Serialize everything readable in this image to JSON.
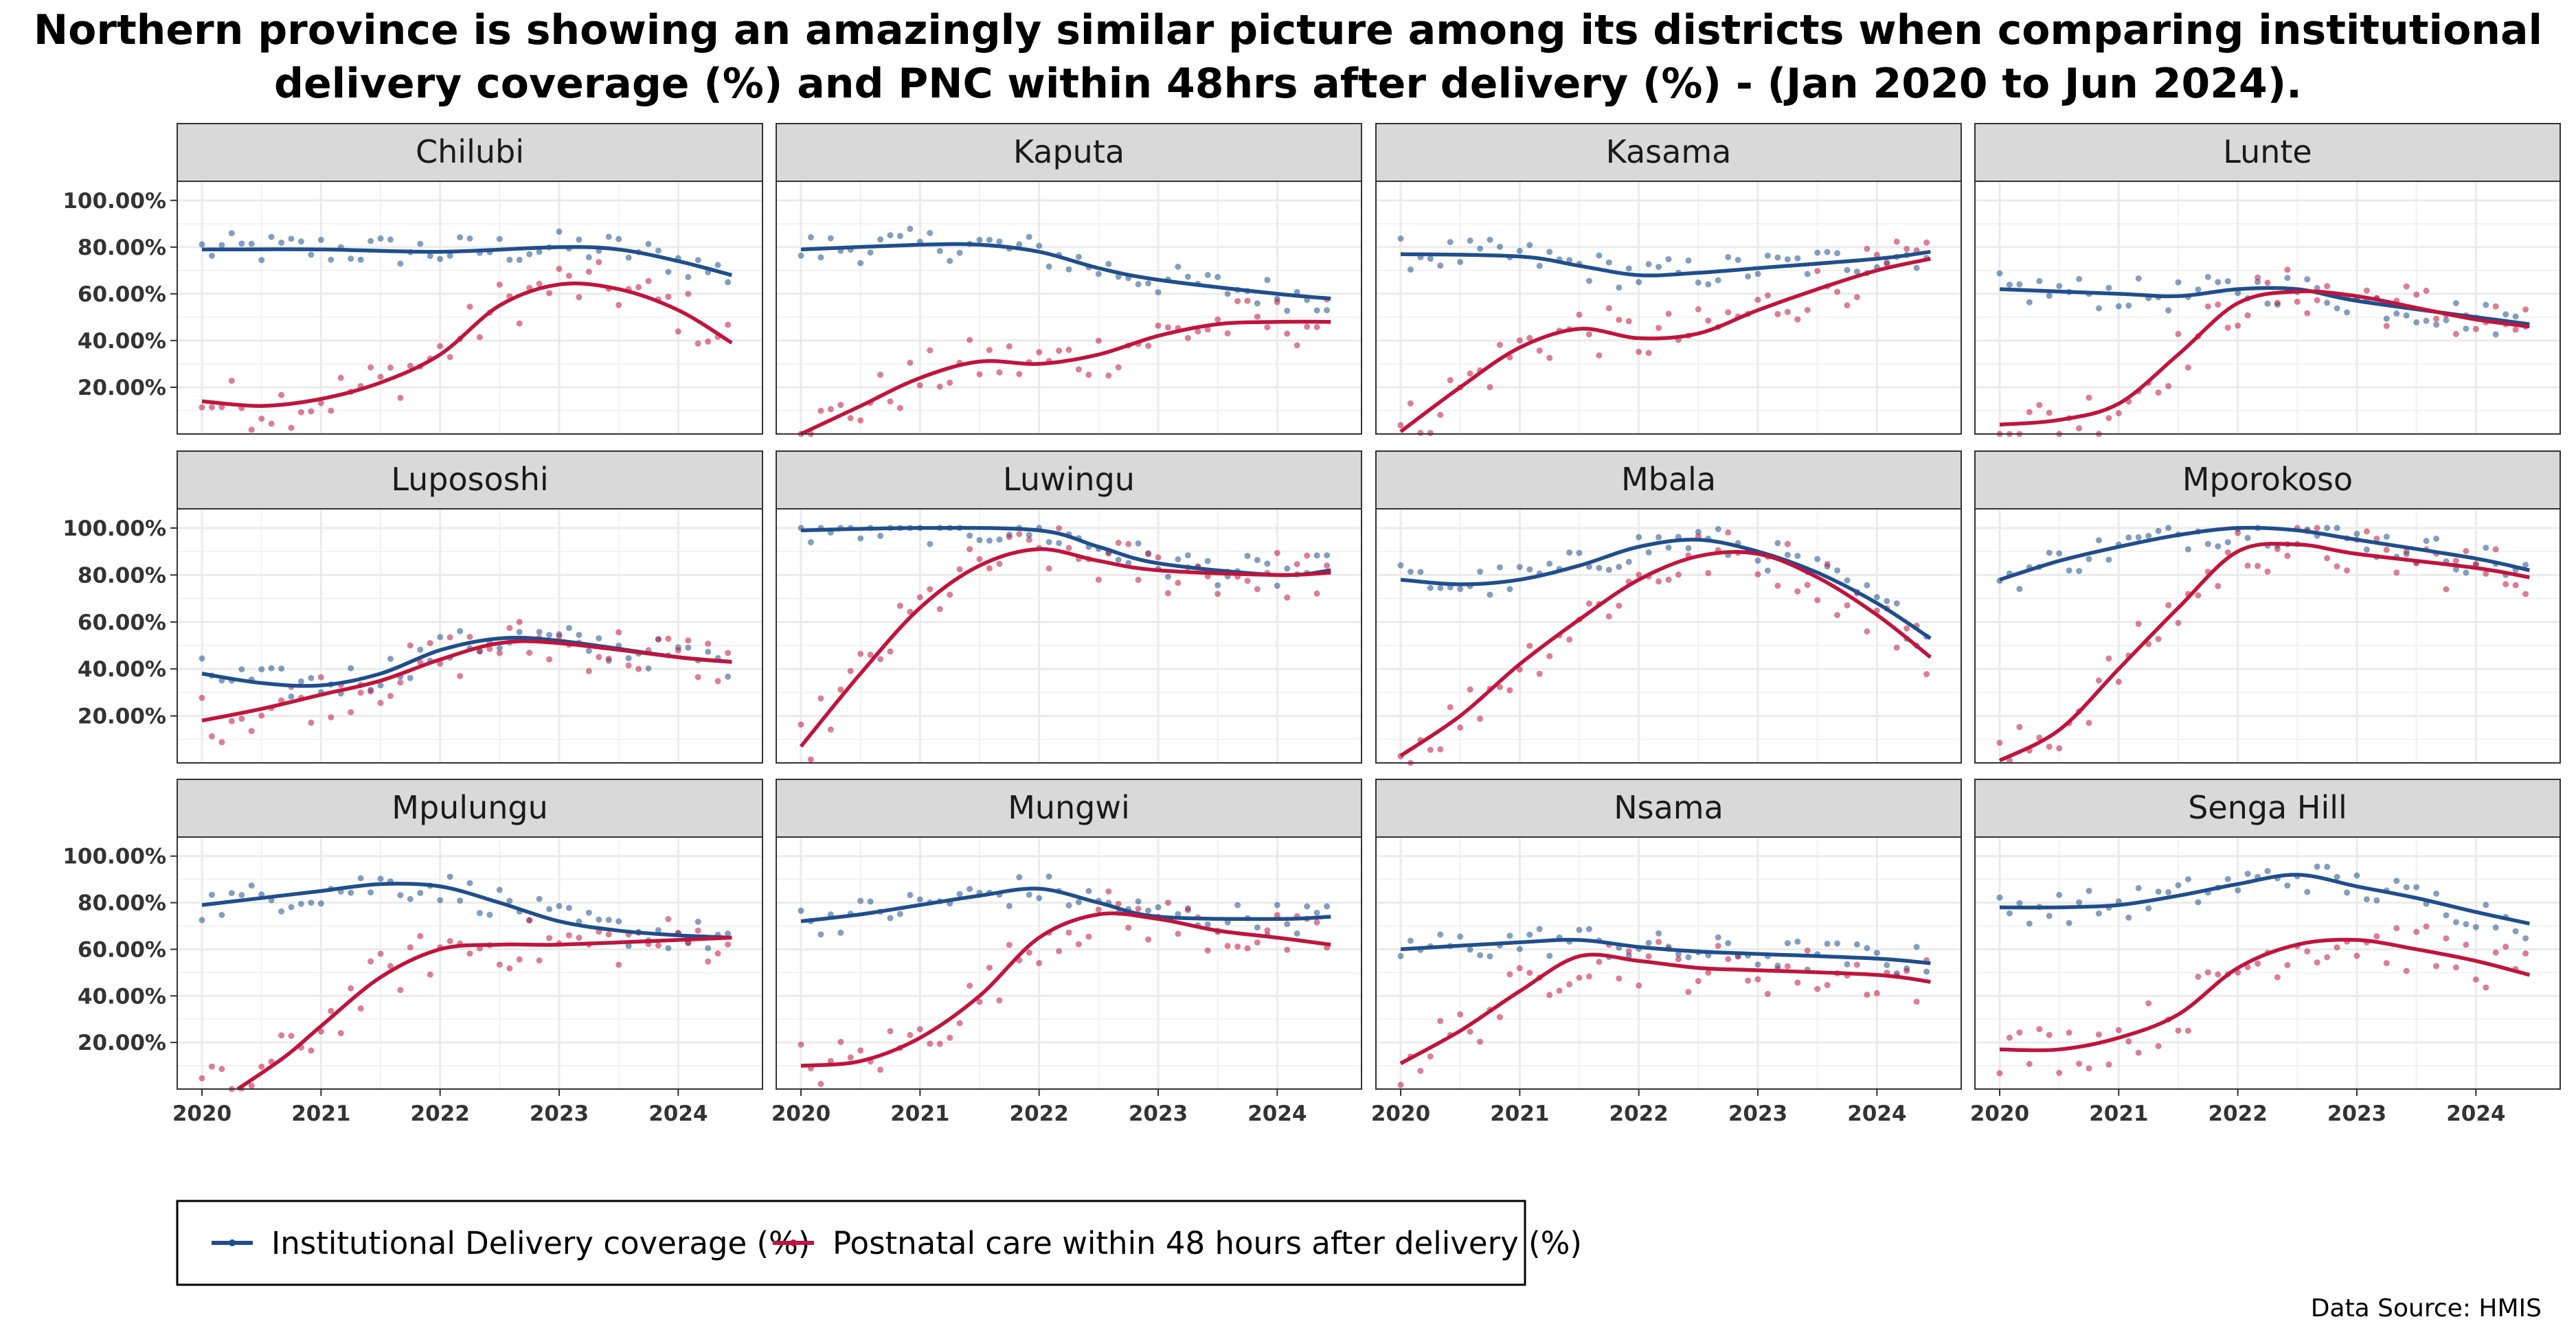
{
  "title_line1": "Northern province is showing an amazingly similar picture among its districts when comparing institutional",
  "title_line2": "delivery coverage (%) and PNC within 48hrs after delivery (%) - (Jan 2020 to Jun 2024).",
  "source": "Data Source: HMIS",
  "colors": {
    "institutional": "#1f4e8c",
    "pnc": "#c0143c",
    "strip_bg": "#d9d9d9",
    "grid": "#ebebeb"
  },
  "chart_data": {
    "type": "scatter",
    "layout": "facet-grid-3x4",
    "x_range": [
      2020,
      2024.5
    ],
    "x_ticks": [
      2020,
      2021,
      2022,
      2023,
      2024
    ],
    "y_range": [
      0,
      107
    ],
    "y_ticks": [
      20,
      40,
      60,
      80,
      100
    ],
    "y_tick_labels": [
      "20.00%",
      "40.00%",
      "60.00%",
      "80.00%",
      "100.00%"
    ],
    "grid": true,
    "legend_position": "bottom-left",
    "series_names": [
      "Institutional Delivery coverage (%)",
      "Postnatal care within 48 hours after delivery (%)"
    ],
    "facets": [
      {
        "name": "Chilubi",
        "institutional": [
          [
            2020,
            79
          ],
          [
            2021,
            79
          ],
          [
            2022,
            78
          ],
          [
            2023,
            80
          ],
          [
            2023.5,
            79
          ],
          [
            2024,
            74
          ],
          [
            2024.45,
            68
          ]
        ],
        "pnc": [
          [
            2020,
            14
          ],
          [
            2020.5,
            12
          ],
          [
            2021,
            15
          ],
          [
            2021.5,
            22
          ],
          [
            2022,
            34
          ],
          [
            2022.5,
            55
          ],
          [
            2023,
            64
          ],
          [
            2023.5,
            62
          ],
          [
            2024,
            53
          ],
          [
            2024.45,
            39
          ]
        ]
      },
      {
        "name": "Kaputa",
        "institutional": [
          [
            2020,
            79
          ],
          [
            2021,
            81
          ],
          [
            2021.5,
            81
          ],
          [
            2022,
            78
          ],
          [
            2022.5,
            71
          ],
          [
            2023,
            66
          ],
          [
            2024,
            60
          ],
          [
            2024.45,
            58
          ]
        ],
        "pnc": [
          [
            2020,
            0
          ],
          [
            2020.5,
            12
          ],
          [
            2021,
            24
          ],
          [
            2021.5,
            31
          ],
          [
            2022,
            30
          ],
          [
            2022.5,
            34
          ],
          [
            2023,
            42
          ],
          [
            2023.5,
            47
          ],
          [
            2024,
            48
          ],
          [
            2024.45,
            48
          ]
        ]
      },
      {
        "name": "Kasama",
        "institutional": [
          [
            2020,
            77
          ],
          [
            2021,
            76
          ],
          [
            2021.5,
            72
          ],
          [
            2022,
            68
          ],
          [
            2022.5,
            69
          ],
          [
            2023,
            71
          ],
          [
            2024,
            75
          ],
          [
            2024.45,
            78
          ]
        ],
        "pnc": [
          [
            2020,
            1
          ],
          [
            2020.5,
            20
          ],
          [
            2021,
            37
          ],
          [
            2021.5,
            45
          ],
          [
            2022,
            41
          ],
          [
            2022.5,
            43
          ],
          [
            2023,
            53
          ],
          [
            2023.5,
            62
          ],
          [
            2024,
            70
          ],
          [
            2024.45,
            75
          ]
        ]
      },
      {
        "name": "Lunte",
        "institutional": [
          [
            2020,
            62
          ],
          [
            2021,
            60
          ],
          [
            2021.5,
            59
          ],
          [
            2022,
            62
          ],
          [
            2022.5,
            62
          ],
          [
            2023,
            57
          ],
          [
            2024,
            50
          ],
          [
            2024.45,
            47
          ]
        ],
        "pnc": [
          [
            2020,
            4
          ],
          [
            2020.5,
            6
          ],
          [
            2021,
            13
          ],
          [
            2021.5,
            34
          ],
          [
            2022,
            56
          ],
          [
            2022.5,
            61
          ],
          [
            2023,
            59
          ],
          [
            2023.5,
            54
          ],
          [
            2024,
            49
          ],
          [
            2024.45,
            46
          ]
        ]
      },
      {
        "name": "Lupososhi",
        "institutional": [
          [
            2020,
            38
          ],
          [
            2020.5,
            34
          ],
          [
            2021,
            33
          ],
          [
            2021.5,
            38
          ],
          [
            2022,
            48
          ],
          [
            2022.5,
            53
          ],
          [
            2023,
            52
          ],
          [
            2024,
            45
          ],
          [
            2024.45,
            43
          ]
        ],
        "pnc": [
          [
            2020,
            18
          ],
          [
            2020.5,
            23
          ],
          [
            2021,
            29
          ],
          [
            2021.5,
            35
          ],
          [
            2022,
            44
          ],
          [
            2022.5,
            51
          ],
          [
            2023,
            51
          ],
          [
            2024,
            45
          ],
          [
            2024.45,
            43
          ]
        ]
      },
      {
        "name": "Luwingu",
        "institutional": [
          [
            2020,
            99
          ],
          [
            2021,
            100
          ],
          [
            2022,
            99
          ],
          [
            2022.5,
            92
          ],
          [
            2023,
            85
          ],
          [
            2024,
            80
          ],
          [
            2024.45,
            82
          ]
        ],
        "pnc": [
          [
            2020,
            7
          ],
          [
            2020.5,
            38
          ],
          [
            2021,
            66
          ],
          [
            2021.5,
            84
          ],
          [
            2022,
            91
          ],
          [
            2022.5,
            86
          ],
          [
            2023,
            82
          ],
          [
            2024,
            80
          ],
          [
            2024.45,
            81
          ]
        ]
      },
      {
        "name": "Mbala",
        "institutional": [
          [
            2020,
            78
          ],
          [
            2020.5,
            76
          ],
          [
            2021,
            78
          ],
          [
            2021.5,
            84
          ],
          [
            2022,
            92
          ],
          [
            2022.5,
            95
          ],
          [
            2023,
            90
          ],
          [
            2023.5,
            81
          ],
          [
            2024,
            68
          ],
          [
            2024.45,
            53
          ]
        ],
        "pnc": [
          [
            2020,
            3
          ],
          [
            2020.5,
            20
          ],
          [
            2021,
            42
          ],
          [
            2021.5,
            61
          ],
          [
            2022,
            78
          ],
          [
            2022.5,
            88
          ],
          [
            2023,
            89
          ],
          [
            2023.5,
            79
          ],
          [
            2024,
            63
          ],
          [
            2024.45,
            45
          ]
        ]
      },
      {
        "name": "Mporokoso",
        "institutional": [
          [
            2020,
            78
          ],
          [
            2020.5,
            86
          ],
          [
            2021,
            92
          ],
          [
            2021.5,
            97
          ],
          [
            2022,
            100
          ],
          [
            2022.5,
            99
          ],
          [
            2023,
            95
          ],
          [
            2024,
            87
          ],
          [
            2024.45,
            82
          ]
        ],
        "pnc": [
          [
            2020,
            1
          ],
          [
            2020.5,
            14
          ],
          [
            2021,
            40
          ],
          [
            2021.5,
            66
          ],
          [
            2022,
            90
          ],
          [
            2022.5,
            93
          ],
          [
            2023,
            89
          ],
          [
            2024,
            83
          ],
          [
            2024.45,
            79
          ]
        ]
      },
      {
        "name": "Mpulungu",
        "institutional": [
          [
            2020,
            79
          ],
          [
            2020.5,
            82
          ],
          [
            2021,
            85
          ],
          [
            2021.5,
            88
          ],
          [
            2022,
            87
          ],
          [
            2022.5,
            80
          ],
          [
            2023,
            72
          ],
          [
            2023.5,
            68
          ],
          [
            2024,
            66
          ],
          [
            2024.45,
            65
          ]
        ],
        "pnc": [
          [
            2020.3,
            0
          ],
          [
            2020.7,
            14
          ],
          [
            2021,
            27
          ],
          [
            2021.5,
            48
          ],
          [
            2022,
            60
          ],
          [
            2022.5,
            62
          ],
          [
            2023,
            62
          ],
          [
            2024,
            64
          ],
          [
            2024.45,
            65
          ]
        ]
      },
      {
        "name": "Mungwi",
        "institutional": [
          [
            2020,
            72
          ],
          [
            2020.5,
            75
          ],
          [
            2021,
            79
          ],
          [
            2021.5,
            83
          ],
          [
            2022,
            86
          ],
          [
            2022.5,
            80
          ],
          [
            2023,
            74
          ],
          [
            2024,
            73
          ],
          [
            2024.45,
            74
          ]
        ],
        "pnc": [
          [
            2020,
            10
          ],
          [
            2020.5,
            12
          ],
          [
            2021,
            22
          ],
          [
            2021.5,
            40
          ],
          [
            2022,
            65
          ],
          [
            2022.5,
            75
          ],
          [
            2023,
            73
          ],
          [
            2023.5,
            68
          ],
          [
            2024,
            65
          ],
          [
            2024.45,
            62
          ]
        ]
      },
      {
        "name": "Nsama",
        "institutional": [
          [
            2020,
            60
          ],
          [
            2021,
            63
          ],
          [
            2021.5,
            64
          ],
          [
            2022,
            61
          ],
          [
            2022.5,
            59
          ],
          [
            2023,
            58
          ],
          [
            2024,
            56
          ],
          [
            2024.45,
            54
          ]
        ],
        "pnc": [
          [
            2020,
            11
          ],
          [
            2020.5,
            25
          ],
          [
            2021,
            42
          ],
          [
            2021.5,
            57
          ],
          [
            2022,
            55
          ],
          [
            2022.5,
            52
          ],
          [
            2023,
            51
          ],
          [
            2024,
            49
          ],
          [
            2024.45,
            46
          ]
        ]
      },
      {
        "name": "Senga Hill",
        "institutional": [
          [
            2020,
            78
          ],
          [
            2020.5,
            78
          ],
          [
            2021,
            79
          ],
          [
            2021.5,
            83
          ],
          [
            2022,
            88
          ],
          [
            2022.5,
            92
          ],
          [
            2023,
            87
          ],
          [
            2023.5,
            82
          ],
          [
            2024,
            76
          ],
          [
            2024.45,
            71
          ]
        ],
        "pnc": [
          [
            2020,
            17
          ],
          [
            2020.5,
            17
          ],
          [
            2021,
            22
          ],
          [
            2021.5,
            32
          ],
          [
            2022,
            52
          ],
          [
            2022.5,
            62
          ],
          [
            2023,
            64
          ],
          [
            2023.5,
            60
          ],
          [
            2024,
            55
          ],
          [
            2024.45,
            49
          ]
        ]
      }
    ]
  }
}
